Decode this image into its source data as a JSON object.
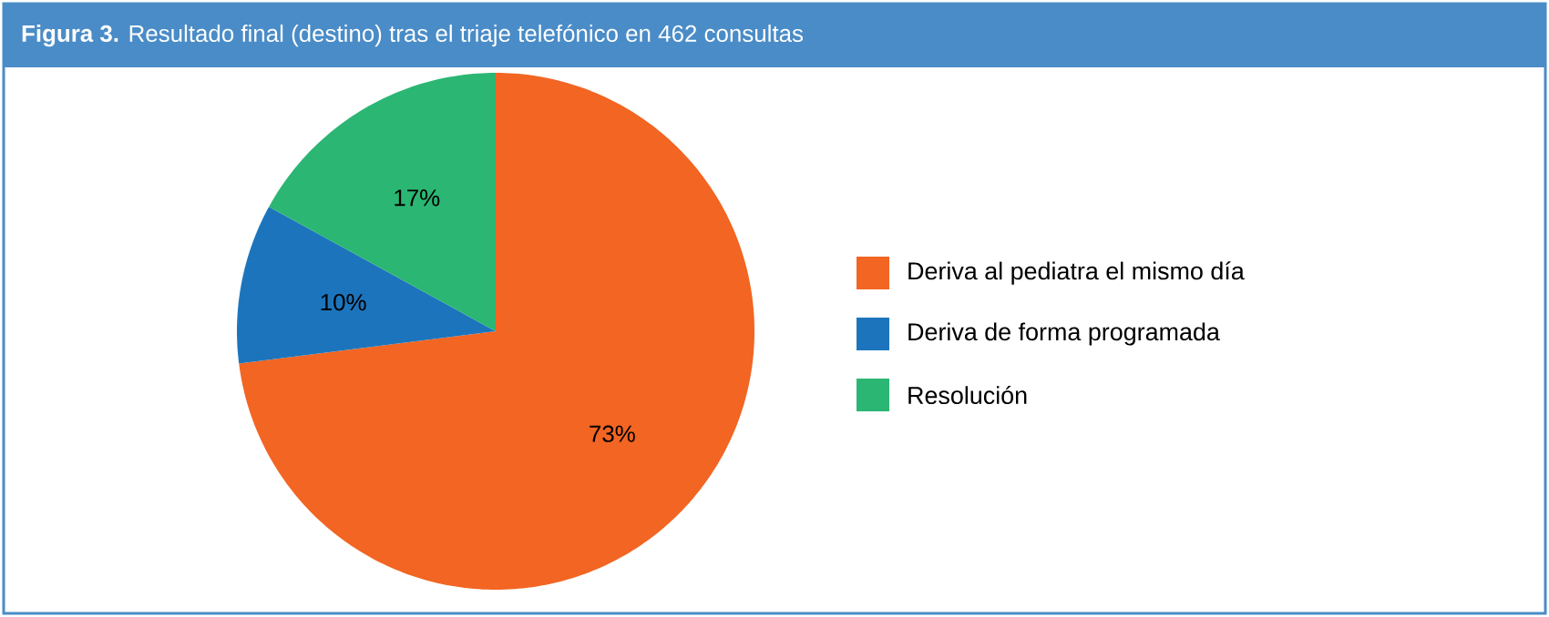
{
  "chart_data": {
    "type": "pie",
    "title": "**Figura 3.** Resultado final (destino) tras el triaje telefónico en 462 consultas",
    "categories": [
      "Deriva al pediatra el mismo día",
      "Deriva de forma programada",
      "Resolución"
    ],
    "values": [
      73,
      10,
      17
    ],
    "colors": [
      "#f26522",
      "#1c75bc",
      "#2bb673"
    ],
    "value_labels": [
      "73%",
      "10%",
      "17%"
    ],
    "legend": "right"
  }
}
